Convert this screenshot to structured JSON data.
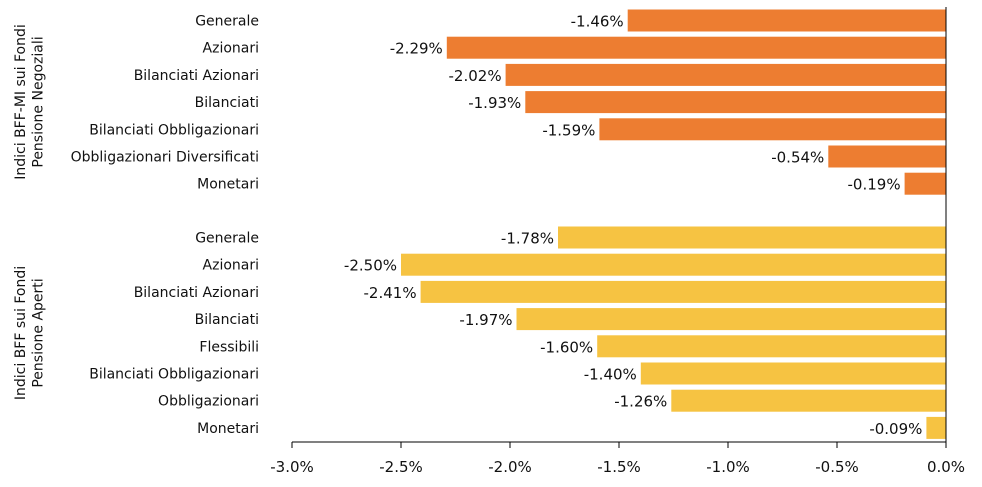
{
  "chart_data": {
    "type": "bar",
    "orientation": "horizontal",
    "xlim": [
      -3.0,
      0.0
    ],
    "x_ticks": [
      "-3.0%",
      "-2.5%",
      "-2.0%",
      "-1.5%",
      "-1.0%",
      "-0.5%",
      "0.0%"
    ],
    "grid": false,
    "groups": [
      {
        "label": "Indici BFF-MI sui Fondi Pensione Negoziali",
        "label_lines": [
          "Indici BFF-MI sui Fondi",
          "Pensione Negoziali"
        ],
        "color": "#ED7D31",
        "categories": [
          "Generale",
          "Azionari",
          "Bilanciati Azionari",
          "Bilanciati",
          "Bilanciati Obbligazionari",
          "Obbligazionari Diversificati",
          "Monetari"
        ],
        "values": [
          -1.46,
          -2.29,
          -2.02,
          -1.93,
          -1.59,
          -0.54,
          -0.19
        ],
        "value_labels": [
          "-1.46%",
          "-2.29%",
          "-2.02%",
          "-1.93%",
          "-1.59%",
          "-0.54%",
          "-0.19%"
        ]
      },
      {
        "label": "Indici BFF sui Fondi Pensione Aperti",
        "label_lines": [
          "Indici BFF sui Fondi",
          "Pensione Aperti"
        ],
        "color": "#F6C342",
        "categories": [
          "Generale",
          "Azionari",
          "Bilanciati Azionari",
          "Bilanciati",
          "Flessibili",
          "Bilanciati Obbligazionari",
          "Obbligazionari",
          "Monetari"
        ],
        "values": [
          -1.78,
          -2.5,
          -2.41,
          -1.97,
          -1.6,
          -1.4,
          -1.26,
          -0.09
        ],
        "value_labels": [
          "-1.78%",
          "-2.50%",
          "-2.41%",
          "-1.97%",
          "-1.60%",
          "-1.40%",
          "-1.26%",
          "-0.09%"
        ]
      }
    ]
  }
}
